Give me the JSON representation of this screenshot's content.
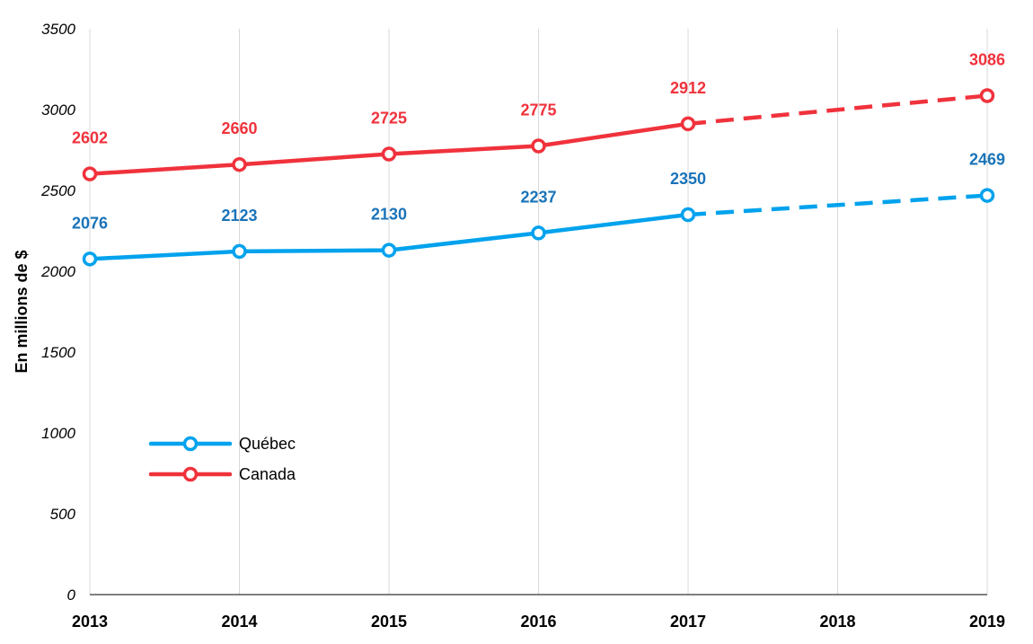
{
  "chart_data": {
    "type": "line",
    "ylabel": "En millions de $",
    "xlabel": "",
    "categories": [
      "2013",
      "2014",
      "2015",
      "2016",
      "2017",
      "2018",
      "2019"
    ],
    "yticks": [
      "0",
      "500",
      "1000",
      "1500",
      "2000",
      "2500",
      "3000",
      "3500"
    ],
    "ylim": [
      0,
      3500
    ],
    "grid": "vertical",
    "legend_position": "bottom-left",
    "projection_style": "dashed from 2017 to 2019",
    "series": [
      {
        "name": "Québec",
        "color": "#00a2ed",
        "label_color": "#1a73b8",
        "values": [
          2076,
          2123,
          2130,
          2237,
          2350,
          null,
          2469
        ],
        "labels": [
          "2076",
          "2123",
          "2130",
          "2237",
          "2350",
          "",
          "2469"
        ]
      },
      {
        "name": "Canada",
        "color": "#f0323c",
        "label_color": "#f0323c",
        "values": [
          2602,
          2660,
          2725,
          2775,
          2912,
          null,
          3086
        ],
        "labels": [
          "2602",
          "2660",
          "2725",
          "2775",
          "2912",
          "",
          "3086"
        ]
      }
    ]
  }
}
